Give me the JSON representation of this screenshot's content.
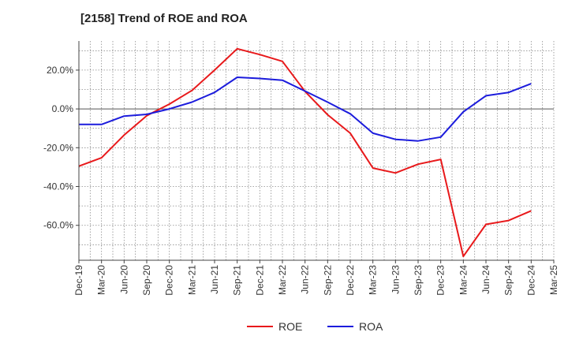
{
  "chart_data": {
    "type": "line",
    "title": "[2158]  Trend of ROE and ROA",
    "x": [
      "Dec-19",
      "Mar-20",
      "Jun-20",
      "Sep-20",
      "Dec-20",
      "Mar-21",
      "Jun-21",
      "Sep-21",
      "Dec-21",
      "Mar-22",
      "Jun-22",
      "Sep-22",
      "Dec-22",
      "Mar-23",
      "Jun-23",
      "Sep-23",
      "Dec-23",
      "Mar-24",
      "Jun-24",
      "Sep-24",
      "Dec-24",
      "Mar-25"
    ],
    "ylim": [
      -78,
      35
    ],
    "yticks": [
      20,
      0,
      -20,
      -40,
      -60
    ],
    "ytick_labels": [
      "20.0%",
      "0.0%",
      "-20.0%",
      "-40.0%",
      "-60.0%"
    ],
    "grid": true,
    "legend_position": "bottom",
    "series": [
      {
        "name": "ROE",
        "color": "#e8191b",
        "values": [
          -29.5,
          -25.2,
          -13.5,
          -3.5,
          2.5,
          9.5,
          20,
          31,
          28,
          24.5,
          9,
          -3,
          -12.5,
          -30.5,
          -33,
          -28.5,
          -26,
          -76,
          -59.5,
          -57.5,
          -52.5,
          null
        ]
      },
      {
        "name": "ROA",
        "color": "#1c1cdc",
        "values": [
          -8,
          -8,
          -3.7,
          -2.8,
          0,
          3.5,
          8.5,
          16.3,
          15.7,
          14.8,
          9.2,
          3.5,
          -2.5,
          -12.5,
          -15.7,
          -16.5,
          -14.5,
          -1.5,
          6.8,
          8.5,
          13,
          null
        ]
      }
    ]
  }
}
